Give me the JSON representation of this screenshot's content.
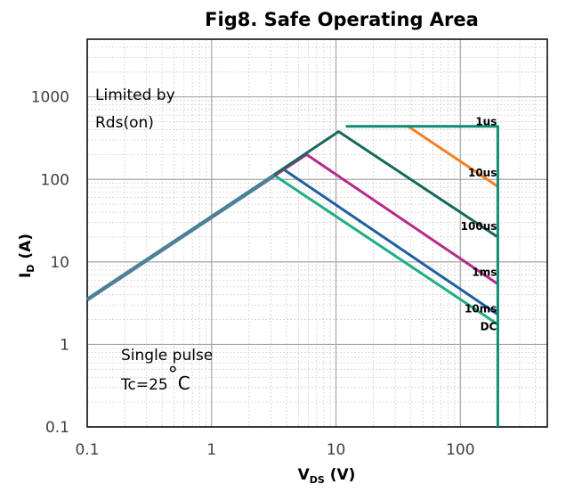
{
  "chart_data": {
    "type": "line",
    "title": "Fig8. Safe Operating Area",
    "xlabel": {
      "main": "V",
      "sub": "DS",
      "suffix": " (V)"
    },
    "ylabel": {
      "main": "I",
      "sub": "D",
      "suffix": " (A)"
    },
    "x_scale": "log",
    "y_scale": "log",
    "xlim": [
      0.1,
      500
    ],
    "ylim": [
      0.1,
      5000
    ],
    "x_ticks": [
      {
        "value": 0.1,
        "label": "0.1"
      },
      {
        "value": 1,
        "label": "1"
      },
      {
        "value": 10,
        "label": "10"
      },
      {
        "value": 100,
        "label": "100"
      }
    ],
    "y_ticks": [
      {
        "value": 0.1,
        "label": "0.1"
      },
      {
        "value": 1,
        "label": "1"
      },
      {
        "value": 10,
        "label": "10"
      },
      {
        "value": 100,
        "label": "100"
      },
      {
        "value": 1000,
        "label": "1000"
      }
    ],
    "grid": true,
    "minor_grid": true,
    "annotations": {
      "limited": [
        "Limited by",
        "Rds(on)"
      ],
      "pulse": "Single pulse",
      "tc": "Tc=25",
      "tc_degree": "°",
      "tc_unit": "C"
    },
    "series": [
      {
        "name": "DC",
        "color": "#1fae84",
        "width": 3,
        "label_pos": [
          200,
          1.65
        ],
        "x": [
          0.1,
          3.2,
          200
        ],
        "y": [
          3.5,
          112,
          1.75
        ]
      },
      {
        "name": "10ms",
        "color": "#1f5f9c",
        "width": 3,
        "label_pos": [
          200,
          2.7
        ],
        "x": [
          0.1,
          3.8,
          200
        ],
        "y": [
          3.5,
          132,
          2.3
        ]
      },
      {
        "name": "1ms",
        "color": "#b52b8a",
        "width": 3,
        "label_pos": [
          200,
          7.5
        ],
        "x": [
          0.1,
          5.8,
          200
        ],
        "y": [
          3.5,
          200,
          5.4
        ]
      },
      {
        "name": "100us",
        "color": "#17695a",
        "width": 3,
        "label_pos": [
          200,
          27
        ],
        "x": [
          0.1,
          10.5,
          200
        ],
        "y": [
          3.5,
          380,
          20
        ]
      },
      {
        "name": "10us",
        "color": "#f57f20",
        "width": 3,
        "label_pos": [
          200,
          120
        ],
        "x": [
          38,
          200
        ],
        "y": [
          440,
          82
        ]
      },
      {
        "name": "1us",
        "color": "#0f8a73",
        "width": 3,
        "label_pos": [
          200,
          500
        ],
        "x": [
          12,
          200,
          200
        ],
        "y": [
          440,
          440,
          0.1
        ]
      },
      {
        "name": "",
        "color": "#4d8199",
        "width": 4.5,
        "x": [
          0.1,
          3.2
        ],
        "y": [
          3.5,
          112
        ]
      }
    ]
  }
}
